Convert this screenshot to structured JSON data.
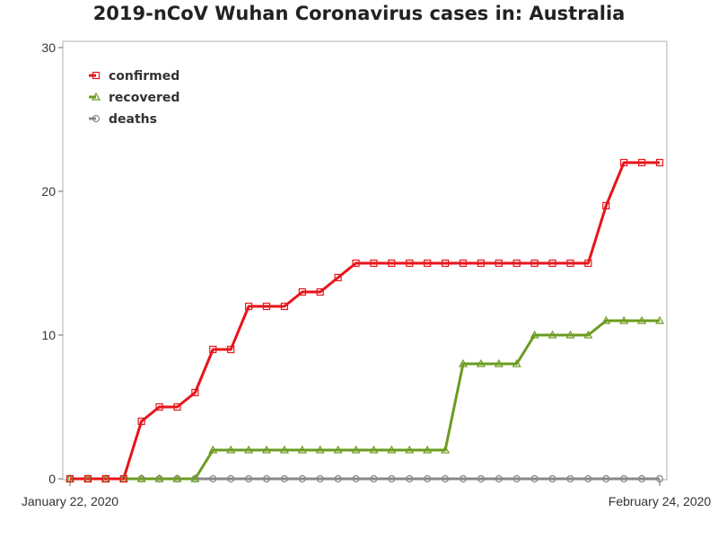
{
  "chart_data": {
    "type": "line",
    "title": "2019-nCoV Wuhan Coronavirus cases in: Australia",
    "xlabel": "",
    "ylabel": "",
    "x_start_label": "January 22, 2020",
    "x_end_label": "February 24, 2020",
    "x": [
      "Jan 22",
      "Jan 23",
      "Jan 24",
      "Jan 25",
      "Jan 26",
      "Jan 27",
      "Jan 28",
      "Jan 29",
      "Jan 30",
      "Jan 31",
      "Feb 1",
      "Feb 2",
      "Feb 3",
      "Feb 4",
      "Feb 5",
      "Feb 6",
      "Feb 7",
      "Feb 8",
      "Feb 9",
      "Feb 10",
      "Feb 11",
      "Feb 12",
      "Feb 13",
      "Feb 14",
      "Feb 15",
      "Feb 16",
      "Feb 17",
      "Feb 18",
      "Feb 19",
      "Feb 20",
      "Feb 21",
      "Feb 22",
      "Feb 23",
      "Feb 24"
    ],
    "ylim": [
      0,
      30
    ],
    "yticks": [
      "0",
      "10",
      "20",
      "30"
    ],
    "grid": false,
    "legend_position": "top-left",
    "series": [
      {
        "name": "confirmed",
        "color": "#e8141a",
        "marker": "square",
        "values": [
          0,
          0,
          0,
          0,
          4,
          5,
          5,
          6,
          9,
          9,
          12,
          12,
          12,
          13,
          13,
          14,
          15,
          15,
          15,
          15,
          15,
          15,
          15,
          15,
          15,
          15,
          15,
          15,
          15,
          15,
          19,
          22,
          22,
          22
        ]
      },
      {
        "name": "recovered",
        "color": "#6b9c1f",
        "marker": "triangle",
        "values": [
          0,
          0,
          0,
          0,
          0,
          0,
          0,
          0,
          2,
          2,
          2,
          2,
          2,
          2,
          2,
          2,
          2,
          2,
          2,
          2,
          2,
          2,
          8,
          8,
          8,
          8,
          10,
          10,
          10,
          10,
          11,
          11,
          11,
          11
        ]
      },
      {
        "name": "deaths",
        "color": "#888888",
        "marker": "circle",
        "values": [
          0,
          0,
          0,
          0,
          0,
          0,
          0,
          0,
          0,
          0,
          0,
          0,
          0,
          0,
          0,
          0,
          0,
          0,
          0,
          0,
          0,
          0,
          0,
          0,
          0,
          0,
          0,
          0,
          0,
          0,
          0,
          0,
          0,
          0
        ]
      }
    ]
  }
}
